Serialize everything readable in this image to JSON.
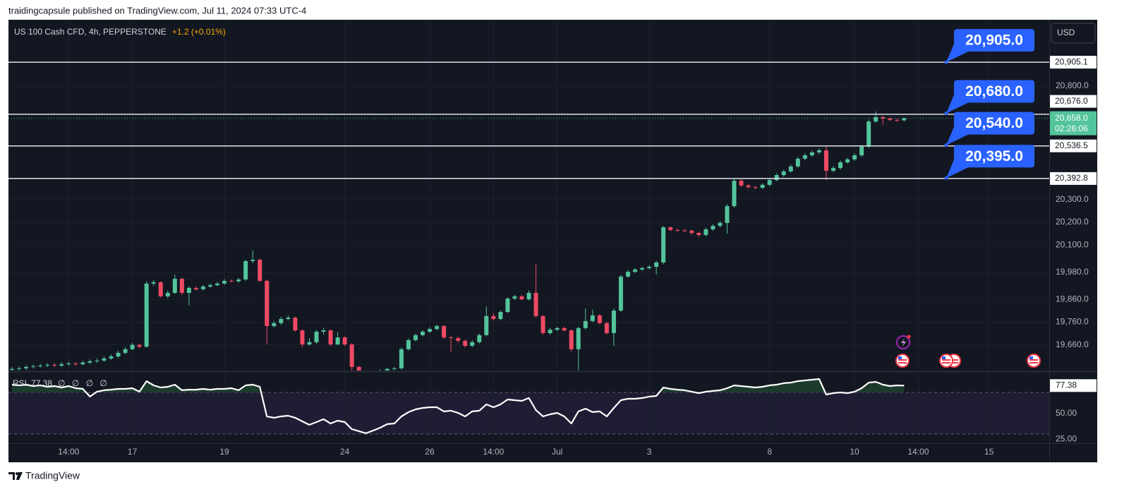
{
  "header": "traidingcapsule published on TradingView.com, Jul 11, 2024 07:33 UTC-4",
  "footer": "TradingView",
  "chart_data": {
    "type": "candlestick",
    "symbol": "US 100 Cash CFD, 4h, PEPPERSTONE",
    "change": "+1.2 (+0.01%)",
    "currency": "USD",
    "up_color": "#53c49b",
    "down_color": "#ef4a64",
    "grid": true,
    "categories": [
      null,
      null,
      null,
      null,
      null,
      null,
      null,
      null,
      "14:00",
      null,
      null,
      null,
      null,
      null,
      null,
      null,
      null,
      "17",
      null,
      null,
      null,
      null,
      null,
      null,
      null,
      null,
      null,
      null,
      null,
      null,
      "19",
      null,
      null,
      null,
      null,
      null,
      null,
      null,
      null,
      null,
      null,
      null,
      null,
      null,
      null,
      null,
      null,
      "24",
      null,
      null,
      null,
      null,
      null,
      null,
      null,
      null,
      null,
      null,
      null,
      "26",
      null,
      null,
      null,
      null,
      null,
      null,
      null,
      null,
      "14:00",
      null,
      null,
      null,
      null,
      null,
      null,
      null,
      null,
      "Jul",
      null,
      null,
      null,
      null,
      null,
      null,
      null,
      null,
      null,
      null,
      null,
      null,
      "3",
      null,
      null,
      null,
      null,
      null,
      null,
      null,
      null,
      null,
      null,
      null,
      null,
      null,
      null,
      null,
      null,
      "8",
      null,
      null,
      null,
      null,
      null,
      null,
      null,
      null,
      null,
      null,
      null,
      "10",
      null,
      null,
      null,
      null,
      null,
      null,
      null,
      null,
      "14:00",
      null,
      null,
      null,
      null,
      null,
      null,
      null,
      null,
      null,
      "15",
      null,
      null,
      null,
      null,
      null,
      null,
      null,
      null
    ],
    "open": [
      19550,
      19554,
      19557,
      19563,
      19566,
      19569,
      19572,
      19569,
      19575,
      19578,
      19575,
      19582,
      19588,
      19591,
      19600,
      19609,
      19625,
      19641,
      19660,
      19652,
      19930,
      19936,
      19874,
      19889,
      19951,
      19889,
      19911,
      19905,
      19917,
      19923,
      19930,
      19942,
      19940,
      19948,
      20029,
      20035,
      19942,
      19743,
      19756,
      19774,
      19780,
      19724,
      19662,
      19672,
      19718,
      19724,
      19662,
      19693,
      19662,
      19563,
      19530,
      19520,
      19528,
      19545,
      19554,
      19557,
      19641,
      19681,
      19703,
      19718,
      19730,
      19743,
      19693,
      19690,
      19678,
      19656,
      19672,
      19703,
      19787,
      19774,
      19805,
      19864,
      19874,
      19861,
      19889,
      19787,
      19712,
      19727,
      19734,
      19724,
      19641,
      19734,
      19765,
      19790,
      19756,
      19712,
      19811,
      19961,
      19982,
      19992,
      19998,
      20004,
      20023,
      20178,
      20166,
      20164,
      20163,
      20153,
      20144,
      20169,
      20184,
      20197,
      20271,
      20383,
      20362,
      20355,
      20352,
      20365,
      20386,
      20408,
      20424,
      20446,
      20480,
      20495,
      20508,
      20517,
      20427,
      20439,
      20464,
      20477,
      20495,
      20533,
      20644,
      20663,
      20657,
      20651,
      20649,
      null,
      null,
      null,
      null,
      null,
      null,
      null,
      null,
      null,
      null,
      null,
      null,
      null,
      null,
      null,
      null,
      null,
      null,
      null,
      null
    ],
    "high": [
      19562,
      19565,
      19570,
      19574,
      19576,
      19580,
      19580,
      19584,
      19586,
      19585,
      19590,
      19596,
      19600,
      19610,
      19618,
      19634,
      19650,
      19668,
      19665,
      19940,
      19945,
      19940,
      19900,
      19970,
      19955,
      19918,
      19918,
      19924,
      19930,
      19938,
      19950,
      19948,
      19956,
      20034,
      20076,
      20040,
      19946,
      19765,
      19784,
      19790,
      19785,
      19728,
      19690,
      19726,
      19735,
      19728,
      19715,
      19698,
      19668,
      19568,
      19538,
      19535,
      19552,
      19560,
      19563,
      19648,
      19688,
      19710,
      19725,
      19738,
      19750,
      19748,
      19700,
      19696,
      19684,
      19680,
      19710,
      19830,
      19800,
      19812,
      19870,
      19880,
      19880,
      19900,
      20017,
      19792,
      19735,
      19740,
      19740,
      19728,
      19740,
      19820,
      19815,
      19795,
      19760,
      19820,
      19968,
      19990,
      19998,
      20004,
      20010,
      20030,
      20184,
      20182,
      20172,
      20170,
      20168,
      20158,
      20176,
      20192,
      20205,
      20280,
      20395,
      20390,
      20368,
      20360,
      20372,
      20394,
      20416,
      20432,
      20454,
      20488,
      20504,
      20516,
      20526,
      20536,
      20448,
      20472,
      20485,
      20504,
      20540,
      20652,
      20688,
      20668,
      20662,
      20656,
      20662,
      null,
      null,
      null,
      null,
      null,
      null,
      null,
      null,
      null,
      null,
      null,
      null,
      null,
      null,
      null,
      null,
      null,
      null,
      null,
      null
    ],
    "low": [
      19544,
      19548,
      19550,
      19556,
      19560,
      19562,
      19562,
      19562,
      19568,
      19568,
      19570,
      19576,
      19580,
      19585,
      19594,
      19602,
      19618,
      19636,
      19645,
      19648,
      19920,
      19868,
      19866,
      19884,
      19880,
      19834,
      19898,
      19900,
      19910,
      19918,
      19924,
      19934,
      19934,
      19942,
      20020,
      19936,
      19662,
      19736,
      19748,
      19768,
      19718,
      19650,
      19655,
      19665,
      19705,
      19655,
      19658,
      19655,
      19540,
      19520,
      19510,
      19512,
      19522,
      19540,
      19548,
      19550,
      19636,
      19676,
      19698,
      19712,
      19724,
      19686,
      19628,
      19670,
      19648,
      19650,
      19666,
      19698,
      19768,
      19768,
      19800,
      19858,
      19855,
      19855,
      19780,
      19705,
      19705,
      19720,
      19718,
      19630,
      19548,
      19728,
      19760,
      19750,
      19705,
      19655,
      19805,
      19955,
      19976,
      19986,
      19992,
      19970,
      20015,
      20160,
      20158,
      20156,
      20146,
      20136,
      20138,
      20162,
      20178,
      20150,
      20265,
      20355,
      20348,
      20345,
      20346,
      20358,
      20380,
      20400,
      20418,
      20440,
      20474,
      20488,
      20500,
      20386,
      20420,
      20432,
      20458,
      20470,
      20488,
      20528,
      20638,
      20630,
      20644,
      20642,
      20645,
      null,
      null,
      null,
      null,
      null,
      null,
      null,
      null,
      null,
      null,
      null,
      null,
      null,
      null,
      null,
      null,
      null,
      null,
      null,
      null
    ],
    "close": [
      19554,
      19557,
      19563,
      19566,
      19569,
      19572,
      19569,
      19575,
      19578,
      19575,
      19582,
      19588,
      19591,
      19600,
      19609,
      19625,
      19641,
      19660,
      19652,
      19930,
      19936,
      19874,
      19889,
      19951,
      19889,
      19911,
      19905,
      19917,
      19923,
      19930,
      19942,
      19940,
      19948,
      20029,
      20035,
      19942,
      19743,
      19756,
      19774,
      19780,
      19724,
      19662,
      19672,
      19718,
      19724,
      19662,
      19693,
      19662,
      19563,
      19530,
      19520,
      19528,
      19545,
      19554,
      19557,
      19641,
      19681,
      19703,
      19718,
      19730,
      19743,
      19693,
      19690,
      19678,
      19656,
      19672,
      19703,
      19787,
      19774,
      19805,
      19864,
      19874,
      19861,
      19889,
      19787,
      19712,
      19727,
      19734,
      19724,
      19641,
      19734,
      19765,
      19790,
      19756,
      19712,
      19811,
      19961,
      19982,
      19992,
      19998,
      20004,
      20023,
      20178,
      20166,
      20164,
      20163,
      20153,
      20144,
      20169,
      20184,
      20197,
      20271,
      20383,
      20362,
      20355,
      20352,
      20365,
      20386,
      20408,
      20424,
      20446,
      20480,
      20495,
      20508,
      20517,
      20427,
      20439,
      20464,
      20477,
      20495,
      20533,
      20644,
      20663,
      20657,
      20651,
      20649,
      20658,
      null,
      null,
      null,
      null,
      null,
      null,
      null,
      null,
      null,
      null,
      null,
      null,
      null,
      null,
      null,
      null,
      null,
      null,
      null,
      null
    ],
    "ylim": [
      19547,
      21092
    ],
    "yticks": [
      {
        "value": 19660,
        "label": "19,660.0"
      },
      {
        "value": 19760,
        "label": "19,760.0"
      },
      {
        "value": 19860,
        "label": "19,860.0"
      },
      {
        "value": 19980,
        "label": "19,980.0"
      },
      {
        "value": 20100,
        "label": "20,100.0"
      },
      {
        "value": 20200,
        "label": "20,200.0"
      },
      {
        "value": 20300,
        "label": "20,300.0"
      },
      {
        "value": 20800,
        "label": "20,800.0"
      }
    ],
    "levels": [
      {
        "value": 20905.1,
        "label": "20,905.1"
      },
      {
        "value": 20676.0,
        "label": "20,676.0"
      },
      {
        "value": 20536.5,
        "label": "20,536.5"
      },
      {
        "value": 20392.8,
        "label": "20,392.8"
      }
    ],
    "annotations": [
      {
        "value": 20905,
        "label": "20,905.0"
      },
      {
        "value": 20680,
        "label": "20,680.0"
      },
      {
        "value": 20540,
        "label": "20,540.0"
      },
      {
        "value": 20395,
        "label": "20,395.0"
      }
    ],
    "last_price": {
      "value": 20658,
      "label": "20,658.0"
    },
    "countdown": "02:26:06",
    "rsi": {
      "name": "RSI",
      "extra": "∅ ∅ ∅ ∅",
      "color": "#ffffff",
      "ylim": [
        21,
        90
      ],
      "yticks": [
        {
          "value": 50,
          "label": "50.00"
        },
        {
          "value": 25,
          "label": "25.00"
        }
      ],
      "values": [
        78.3,
        77.6,
        78.3,
        76.9,
        77.6,
        76.2,
        76.9,
        75.5,
        76.9,
        74.8,
        74.1,
        66.6,
        71.4,
        72.8,
        73.4,
        74.1,
        74.1,
        74.8,
        71.4,
        81.7,
        77.6,
        75.5,
        76.2,
        78.3,
        72.8,
        73.4,
        73.4,
        74.1,
        73.4,
        74.1,
        74.1,
        74.8,
        72.8,
        77.6,
        78.3,
        76.2,
        47.2,
        45.9,
        47.2,
        47.9,
        45.9,
        42.4,
        39.0,
        41.7,
        44.5,
        40.3,
        43.1,
        41.7,
        34.8,
        32.8,
        30.7,
        33.4,
        36.2,
        39.7,
        40.3,
        47.2,
        51.4,
        54.1,
        55.5,
        56.2,
        56.2,
        52.1,
        52.8,
        50.7,
        47.2,
        52.1,
        52.8,
        59.0,
        56.2,
        59.0,
        63.8,
        63.1,
        62.4,
        65.2,
        53.4,
        47.2,
        49.3,
        50.7,
        47.2,
        40.3,
        52.1,
        54.8,
        51.4,
        52.1,
        47.2,
        55.5,
        63.1,
        64.5,
        64.5,
        65.2,
        66.6,
        67.2,
        75.5,
        74.1,
        73.4,
        72.8,
        71.4,
        70.0,
        71.4,
        72.1,
        72.8,
        74.8,
        77.6,
        76.9,
        76.2,
        75.5,
        76.2,
        77.6,
        78.3,
        79.7,
        80.3,
        81.7,
        82.4,
        83.1,
        83.8,
        68.6,
        70.0,
        70.7,
        70.0,
        71.4,
        74.8,
        80.3,
        81.0,
        78.3,
        76.9,
        77.6,
        77.38,
        null,
        null,
        null,
        null,
        null,
        null,
        null,
        null,
        null,
        null,
        null,
        null,
        null,
        null,
        null,
        null,
        null,
        null,
        null,
        null
      ]
    }
  }
}
